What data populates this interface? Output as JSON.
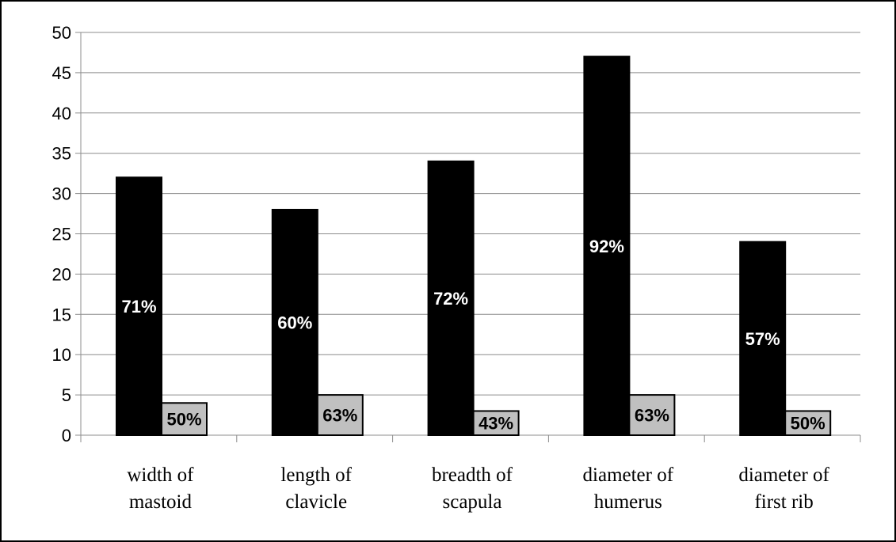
{
  "chart_data": {
    "type": "bar",
    "categories": [
      [
        "width of",
        "mastoid"
      ],
      [
        "length of",
        "clavicle"
      ],
      [
        "breadth of",
        "scapula"
      ],
      [
        "diameter of",
        "humerus"
      ],
      [
        "diameter of",
        "first rib"
      ]
    ],
    "series": [
      {
        "values": [
          32,
          28,
          34,
          47,
          24
        ],
        "labels": [
          "71%",
          "60%",
          "72%",
          "92%",
          "57%"
        ],
        "color": "#000000",
        "label_color": "#ffffff"
      },
      {
        "values": [
          4,
          5,
          3,
          5,
          3
        ],
        "labels": [
          "50%",
          "63%",
          "43%",
          "63%",
          "50%"
        ],
        "color": "#c0c0c0",
        "label_color": "#000000"
      }
    ],
    "yticks": [
      "0",
      "5",
      "10",
      "15",
      "20",
      "25",
      "30",
      "35",
      "40",
      "45",
      "50"
    ],
    "ylim": [
      0,
      50
    ],
    "grid": true,
    "legend": "none"
  }
}
